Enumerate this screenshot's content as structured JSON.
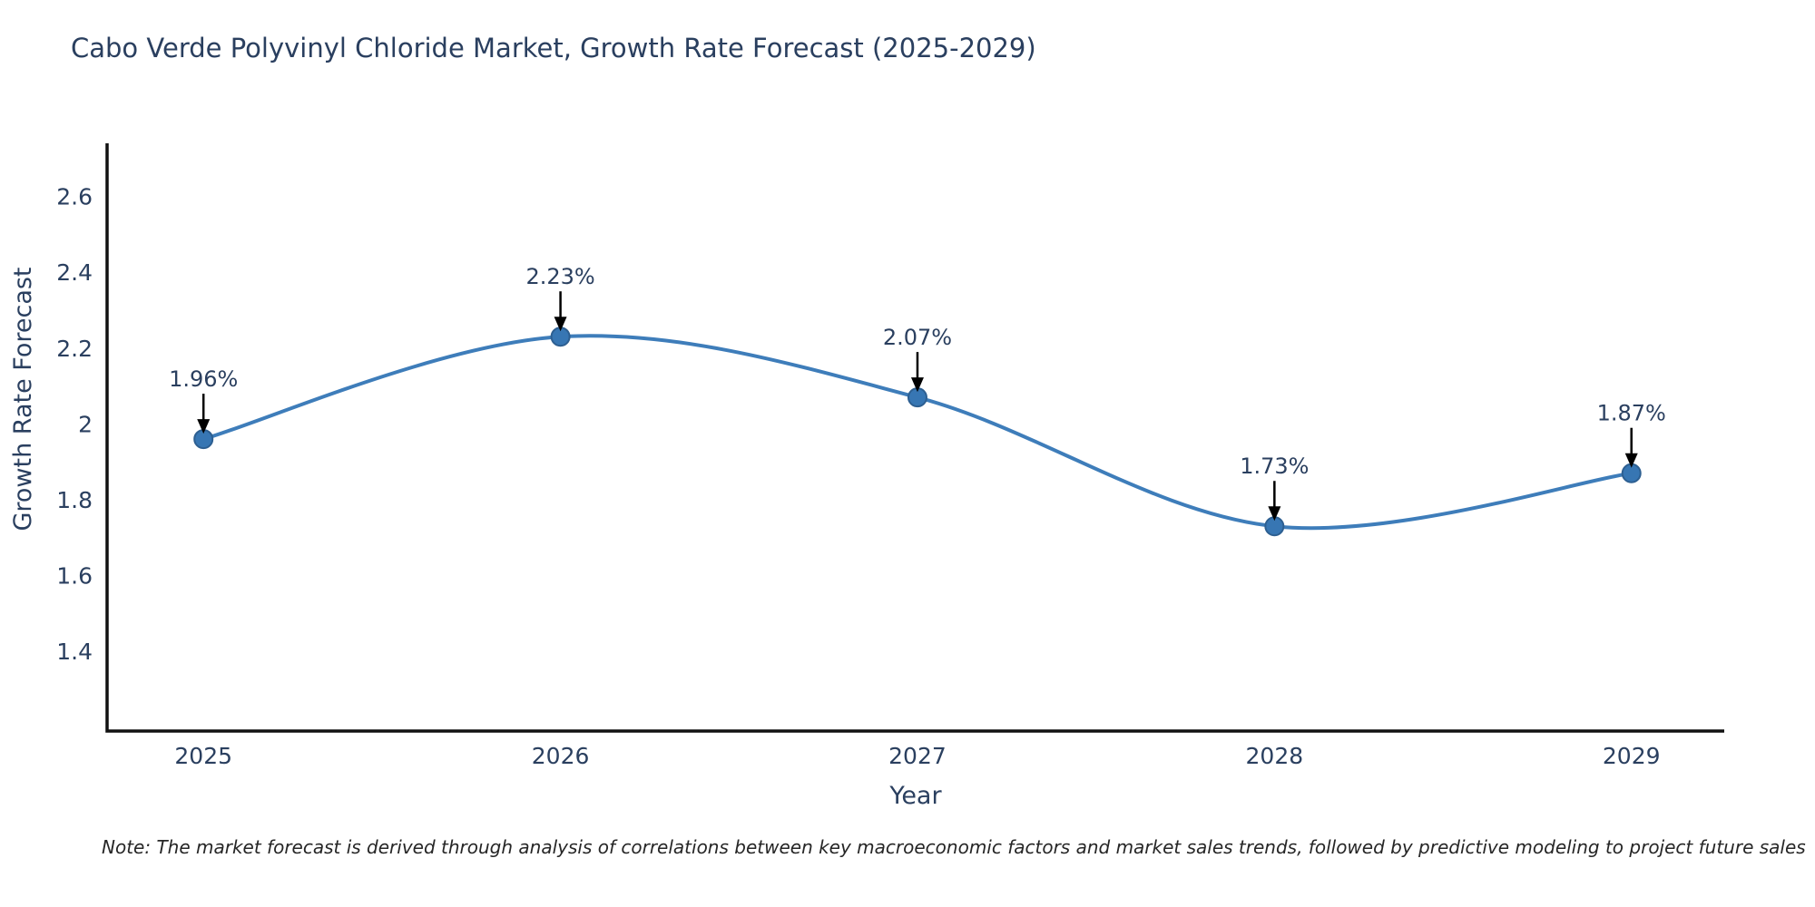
{
  "title": "Cabo Verde Polyvinyl Chloride Market, Growth Rate Forecast (2025-2029)",
  "note": "Note: The market forecast is derived through analysis of correlations between key macroeconomic factors and market sales trends, followed by predictive modeling to project future sales",
  "chart_data": {
    "type": "line",
    "line_shape": "spline",
    "x": [
      2025,
      2026,
      2027,
      2028,
      2029
    ],
    "values": [
      1.96,
      2.23,
      2.07,
      1.73,
      1.87
    ],
    "point_labels": [
      "1.96%",
      "2.23%",
      "2.07%",
      "1.73%",
      "1.87%"
    ],
    "xlabel": "Year",
    "ylabel": "Growth Rate Forecast",
    "xtick_labels": [
      "2025",
      "2026",
      "2027",
      "2028",
      "2029"
    ],
    "ytick_values": [
      1.4,
      1.6,
      1.8,
      2,
      2.2,
      2.4,
      2.6
    ],
    "ytick_labels": [
      "1.4",
      "1.6",
      "1.8",
      "2",
      "2.2",
      "2.4",
      "2.6"
    ],
    "ylim": [
      1.19,
      2.74
    ],
    "xlim": [
      2024.73,
      2029.26
    ],
    "grid": false,
    "legend_position": "none",
    "colors": {
      "line": "#3e7dba",
      "marker_fill": "#3776b3",
      "marker_stroke": "#2d5f91",
      "axis_line": "#111111",
      "text": "#2a3f5f",
      "annotation_arrow": "#000000"
    }
  }
}
